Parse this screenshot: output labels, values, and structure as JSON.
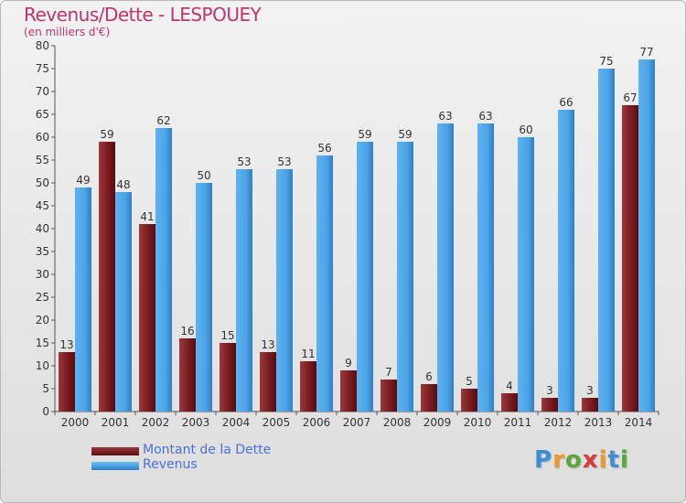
{
  "title": "Revenus/Dette - LESPOUEY",
  "subtitle": "(en milliers d'€)",
  "logo": {
    "letters": [
      "P",
      "r",
      "o",
      "x",
      "i",
      "t",
      "i"
    ]
  },
  "colors": {
    "dette": "#7a1e22",
    "revenus": "#4da3e6",
    "title": "#c0336e",
    "legend_text": "#4a6fe0"
  },
  "chart_data": {
    "type": "bar",
    "categories": [
      "2000",
      "2001",
      "2002",
      "2003",
      "2004",
      "2005",
      "2006",
      "2007",
      "2008",
      "2009",
      "2010",
      "2011",
      "2012",
      "2013",
      "2014"
    ],
    "series": [
      {
        "name": "Montant de la Dette",
        "values": [
          13,
          59,
          41,
          16,
          15,
          13,
          11,
          9,
          7,
          6,
          5,
          4,
          3,
          3,
          67
        ]
      },
      {
        "name": "Revenus",
        "values": [
          49,
          48,
          62,
          50,
          53,
          53,
          56,
          59,
          59,
          63,
          63,
          60,
          66,
          75,
          77
        ]
      }
    ],
    "ylim": [
      0,
      80
    ],
    "yticks": [
      0,
      5,
      10,
      15,
      20,
      25,
      30,
      35,
      40,
      45,
      50,
      55,
      60,
      65,
      70,
      75,
      80
    ],
    "grid": false,
    "legend_position": "bottom-left"
  }
}
